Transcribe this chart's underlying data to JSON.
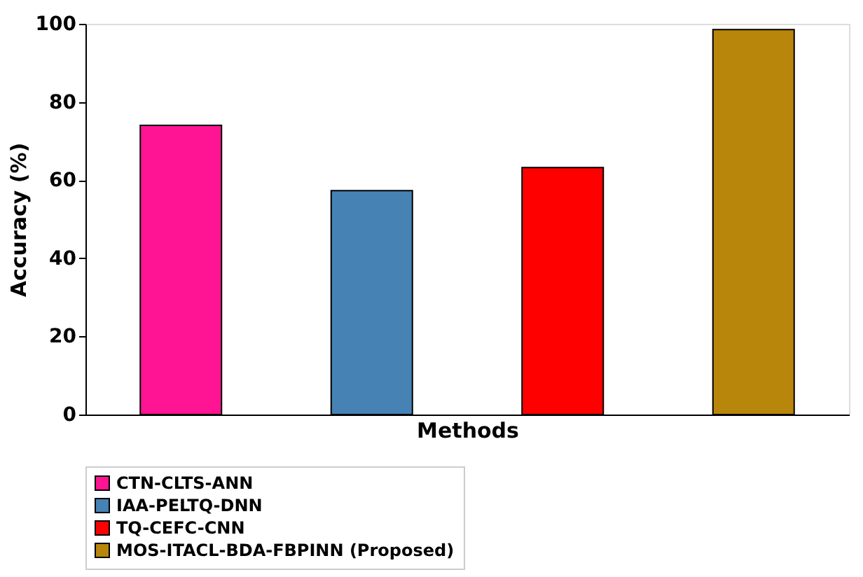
{
  "chart_data": {
    "type": "bar",
    "xlabel": "Methods",
    "ylabel": "Accuracy (%)",
    "categories": [
      null,
      null,
      null,
      null
    ],
    "series": [
      {
        "name": "CTN-CLTS-ANN",
        "color": "#ff1493",
        "values": [
          74,
          null,
          null,
          null
        ]
      },
      {
        "name": "IAA-PELTQ-DNN",
        "color": "#4682b4",
        "values": [
          null,
          57.3,
          null,
          null
        ]
      },
      {
        "name": "TQ-CEFC-CNN",
        "color": "#ff0000",
        "values": [
          null,
          null,
          63.2,
          null
        ]
      },
      {
        "name": "MOS-ITACL-BDA-FBPINN (Proposed)",
        "color": "#b8860b",
        "values": [
          null,
          null,
          null,
          98.5
        ]
      }
    ],
    "ylim": [
      0,
      100
    ],
    "yticks": [
      0,
      20,
      40,
      60,
      80,
      100
    ],
    "grid": false,
    "legend": "bottom",
    "tick_labels": "y"
  }
}
